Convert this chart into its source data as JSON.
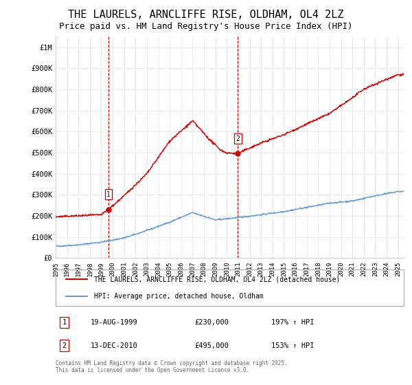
{
  "title": "THE LAURELS, ARNCLIFFE RISE, OLDHAM, OL4 2LZ",
  "subtitle": "Price paid vs. HM Land Registry's House Price Index (HPI)",
  "title_fontsize": 11,
  "subtitle_fontsize": 9,
  "background_color": "#ffffff",
  "grid_color": "#e0e0e0",
  "ylim": [
    0,
    1050000
  ],
  "yticks": [
    0,
    100000,
    200000,
    300000,
    400000,
    500000,
    600000,
    700000,
    800000,
    900000,
    1000000
  ],
  "ytick_labels": [
    "£0",
    "£100K",
    "£200K",
    "£300K",
    "£400K",
    "£500K",
    "£600K",
    "£700K",
    "£800K",
    "£900K",
    "£1M"
  ],
  "xtick_years": [
    1995,
    1996,
    1997,
    1998,
    1999,
    2000,
    2001,
    2002,
    2003,
    2004,
    2005,
    2006,
    2007,
    2008,
    2009,
    2010,
    2011,
    2012,
    2013,
    2014,
    2015,
    2016,
    2017,
    2018,
    2019,
    2020,
    2021,
    2022,
    2023,
    2024,
    2025
  ],
  "sale1_year": 1999.63,
  "sale1_price": 230000,
  "sale1_label": "1",
  "sale2_year": 2010.95,
  "sale2_price": 495000,
  "sale2_label": "2",
  "legend_line1": "THE LAURELS, ARNCLIFFE RISE, OLDHAM, OL4 2LZ (detached house)",
  "legend_line2": "HPI: Average price, detached house, Oldham",
  "note1_label": "1",
  "note1_date": "19-AUG-1999",
  "note1_price": "£230,000",
  "note1_hpi": "197% ↑ HPI",
  "note2_label": "2",
  "note2_date": "13-DEC-2010",
  "note2_price": "£495,000",
  "note2_hpi": "153% ↑ HPI",
  "footer": "Contains HM Land Registry data © Crown copyright and database right 2025.\nThis data is licensed under the Open Government Licence v3.0.",
  "red_line_color": "#cc0000",
  "blue_line_color": "#6699cc",
  "vline_color": "#cc0000",
  "blue_years": [
    1995,
    1997,
    1999,
    2001,
    2003,
    2005,
    2007,
    2009,
    2011,
    2013,
    2015,
    2017,
    2019,
    2021,
    2023,
    2025
  ],
  "blue_prices": [
    55000,
    62000,
    75000,
    95000,
    130000,
    170000,
    215000,
    180000,
    192000,
    205000,
    220000,
    240000,
    260000,
    270000,
    295000,
    315000
  ],
  "red_years": [
    1995,
    1997,
    1999.0,
    1999.63,
    2001,
    2003,
    2005,
    2007.0,
    2007.5,
    2008.5,
    2009.5,
    2010.0,
    2010.95,
    2012,
    2013,
    2015,
    2017,
    2019,
    2021,
    2022,
    2023,
    2025
  ],
  "red_prices": [
    195000,
    200000,
    205000,
    230000,
    295000,
    400000,
    555000,
    650000,
    620000,
    560000,
    510000,
    498000,
    495000,
    522000,
    545000,
    585000,
    635000,
    685000,
    760000,
    800000,
    825000,
    870000
  ]
}
